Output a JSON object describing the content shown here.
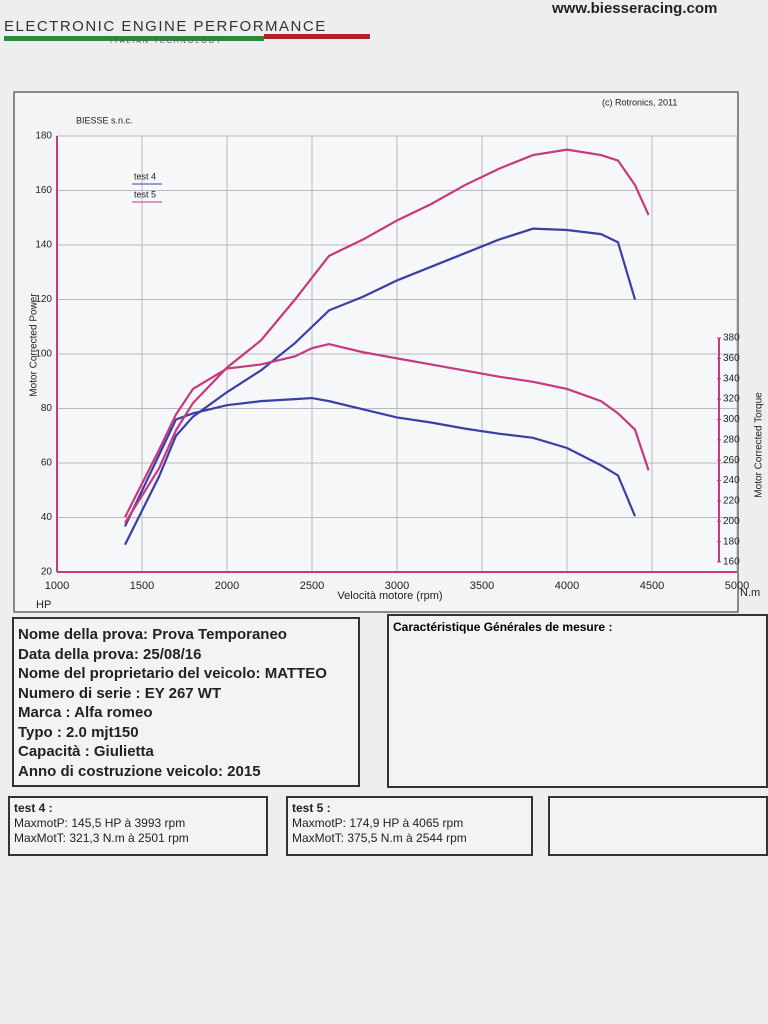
{
  "header": {
    "brand": "ELECTRONIC ENGINE PERFORMANCE",
    "tagline": "ITALIAN TECHNOLOGY",
    "website": "www.biesseracing.com"
  },
  "chart_data": {
    "type": "line",
    "company": "BIESSE s.n.c.",
    "copyright": "(c) Rotronics, 2011",
    "x_label": "Velocità motore (rpm)",
    "y_label": "Motor Corrected Power",
    "y2_label": "Motor Corrected Torque",
    "y_unit": "HP",
    "y2_unit": "N.m",
    "xlim": [
      1000,
      5000
    ],
    "xticks": [
      1000,
      1500,
      2000,
      2500,
      3000,
      3500,
      4000,
      4500,
      5000
    ],
    "ylim": [
      20,
      180
    ],
    "yticks": [
      20,
      40,
      60,
      80,
      100,
      120,
      140,
      160,
      180
    ],
    "y2lim": [
      160,
      380
    ],
    "y2ticks": [
      160,
      180,
      200,
      220,
      240,
      260,
      280,
      300,
      320,
      340,
      360,
      380
    ],
    "grid": true,
    "series": [
      {
        "name": "test 4",
        "color": "#3a3fa8",
        "x": [
          1400,
          1600,
          1700,
          1800,
          2000,
          2200,
          2400,
          2500,
          2600,
          2800,
          3000,
          3200,
          3400,
          3600,
          3800,
          4000,
          4200,
          4300,
          4400
        ],
        "values": [
          30,
          55,
          70,
          77,
          86,
          94,
          104,
          110,
          116,
          121,
          127,
          132,
          137,
          142,
          146,
          145.5,
          144,
          141,
          120
        ],
        "y2_values": [
          195,
          265,
          300,
          306,
          314,
          318,
          320,
          321,
          318,
          310,
          302,
          297,
          291,
          286,
          282,
          272,
          255,
          245,
          205
        ]
      },
      {
        "name": "test 5",
        "color": "#c8387f",
        "x": [
          1400,
          1600,
          1700,
          1800,
          2000,
          2200,
          2400,
          2500,
          2600,
          2800,
          3000,
          3200,
          3400,
          3600,
          3800,
          4000,
          4200,
          4300,
          4400,
          4480
        ],
        "values": [
          38,
          58,
          72,
          82,
          95,
          105,
          120,
          128,
          136,
          142,
          149,
          155,
          162,
          168,
          173,
          175,
          173,
          171,
          162,
          151
        ],
        "y2_values": [
          204,
          270,
          305,
          330,
          350,
          354,
          362,
          370,
          374,
          366,
          360,
          354,
          348,
          342,
          337,
          330,
          318,
          306,
          290,
          250
        ]
      }
    ]
  },
  "info": {
    "lines": [
      "Nome della prova: Prova Temporaneo",
      "Data della prova: 25/08/16",
      "Nome del proprietario del veicolo: MATTEO",
      "Numero di serie  : EY 267 WT",
      "Marca  : Alfa romeo",
      "Typo  : 2.0 mjt150",
      "Capacità  : Giulietta",
      "Anno di costruzione veicolo: 2015"
    ],
    "characteristics_title": "Caractéristique Générales de mesure :"
  },
  "results": [
    {
      "title": "test 4 :",
      "lines": [
        "MaxmotP: 145,5 HP à 3993 rpm",
        "MaxMotT: 321,3 N.m à 2501 rpm"
      ]
    },
    {
      "title": "test 5 :",
      "lines": [
        "MaxmotP: 174,9 HP à 4065 rpm",
        "MaxMotT: 375,5 N.m à 2544 rpm"
      ]
    }
  ]
}
